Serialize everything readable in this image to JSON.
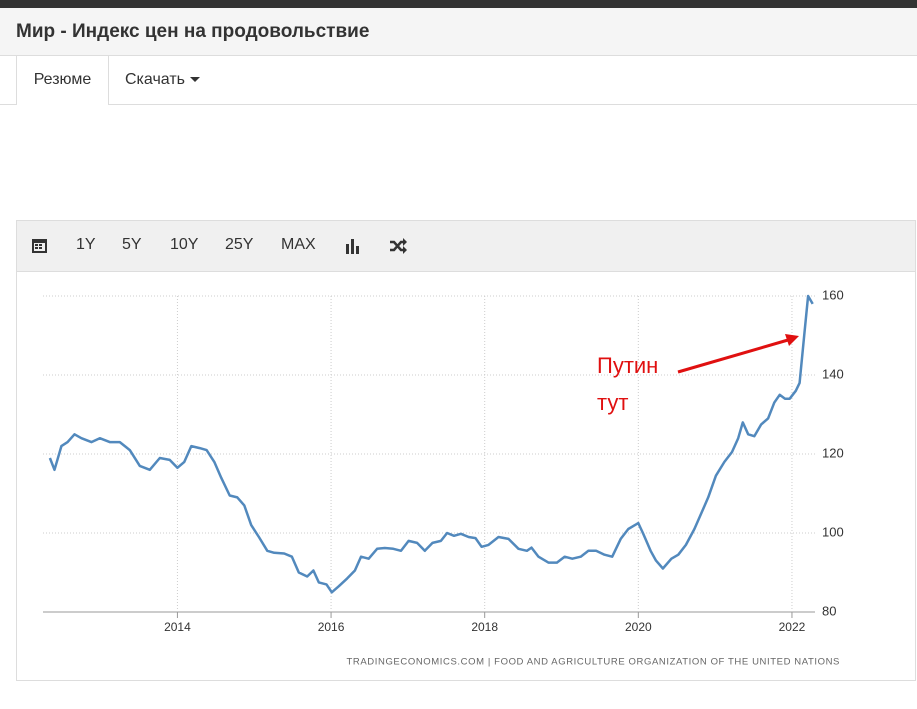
{
  "header": {
    "title": "Мир - Индекс цен на продовольствие"
  },
  "tabs": [
    "Резюме",
    "Скачать"
  ],
  "toolbar": {
    "ranges": [
      "1Y",
      "5Y",
      "10Y",
      "25Y",
      "MAX"
    ]
  },
  "chart_data": {
    "type": "line",
    "annotation": [
      "Путин",
      "тут"
    ],
    "source": "TRADINGECONOMICS.COM | FOOD AND AGRICULTURE ORGANIZATION OF THE UNITED NATIONS",
    "xlim": [
      2012.25,
      2022.3
    ],
    "xticks": [
      2014,
      2016,
      2018,
      2020,
      2022
    ],
    "ylim": [
      80,
      160
    ],
    "yticks": [
      80,
      100,
      120,
      140,
      160
    ],
    "grid": true,
    "color": "#5289bd",
    "x": [
      2012.34,
      2012.4,
      2012.49,
      2012.57,
      2012.66,
      2012.75,
      2012.88,
      2012.99,
      2013.12,
      2013.25,
      2013.38,
      2013.51,
      2013.64,
      2013.77,
      2013.9,
      2014.0,
      2014.09,
      2014.18,
      2014.29,
      2014.38,
      2014.48,
      2014.57,
      2014.68,
      2014.78,
      2014.87,
      2014.96,
      2015.06,
      2015.17,
      2015.26,
      2015.39,
      2015.49,
      2015.58,
      2015.69,
      2015.77,
      2015.84,
      2015.94,
      2016.01,
      2016.1,
      2016.21,
      2016.31,
      2016.39,
      2016.49,
      2016.6,
      2016.7,
      2016.81,
      2016.91,
      2017.01,
      2017.12,
      2017.22,
      2017.32,
      2017.43,
      2017.51,
      2017.6,
      2017.69,
      2017.79,
      2017.88,
      2017.96,
      2018.05,
      2018.18,
      2018.31,
      2018.44,
      2018.55,
      2018.61,
      2018.7,
      2018.83,
      2018.94,
      2019.04,
      2019.14,
      2019.25,
      2019.35,
      2019.45,
      2019.56,
      2019.66,
      2019.77,
      2019.87,
      2020.0,
      2020.06,
      2020.16,
      2020.23,
      2020.32,
      2020.43,
      2020.52,
      2020.62,
      2020.73,
      2020.82,
      2020.91,
      2021.01,
      2021.12,
      2021.22,
      2021.3,
      2021.36,
      2021.43,
      2021.51,
      2021.6,
      2021.69,
      2021.77,
      2021.84,
      2021.91,
      2021.97,
      2022.05,
      2022.1,
      2022.16,
      2022.21,
      2022.27
    ],
    "values": [
      119,
      116,
      122,
      123,
      125,
      124,
      123,
      124,
      123,
      123,
      121,
      117,
      116,
      119,
      118.5,
      116.5,
      118,
      122,
      121.5,
      121,
      118,
      114,
      109.5,
      109,
      107,
      102,
      99,
      95.5,
      95,
      94.8,
      94,
      90,
      89,
      90.5,
      87.5,
      87,
      85,
      86.5,
      88.5,
      90.5,
      94,
      93.5,
      96,
      96.2,
      96,
      95.5,
      98,
      97.5,
      95.5,
      97.5,
      98,
      100,
      99.3,
      99.8,
      99,
      98.7,
      96.5,
      97,
      99,
      98.5,
      96,
      95.5,
      96.3,
      94,
      92.5,
      92.5,
      94,
      93.5,
      94,
      95.5,
      95.5,
      94.5,
      94,
      98.5,
      101,
      102.5,
      100,
      95.5,
      93,
      91,
      93.5,
      94.5,
      97,
      101,
      105,
      109,
      114.5,
      118,
      120.5,
      124,
      128,
      125,
      124.5,
      127.5,
      129,
      133,
      135,
      134,
      134,
      136,
      138,
      150,
      160,
      158
    ]
  }
}
